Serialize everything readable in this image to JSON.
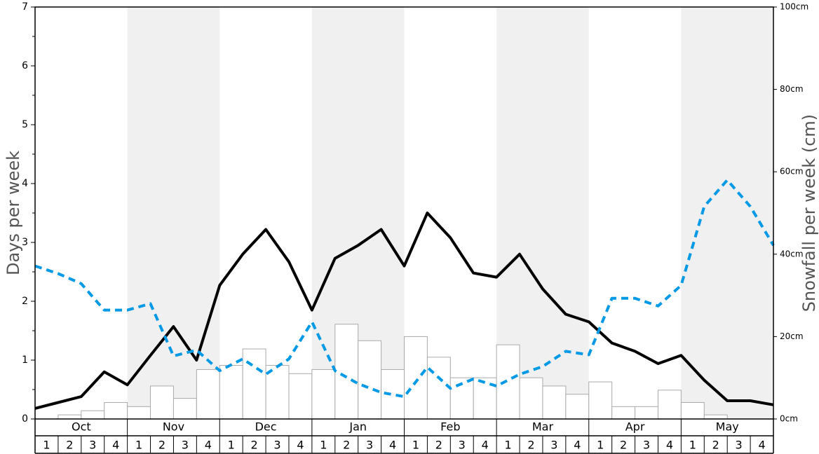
{
  "chart_data": {
    "type": "bar",
    "ylabel_left": "Days per week",
    "ylabel_right": "Snowfall per week (cm)",
    "ylim_left": [
      0,
      7
    ],
    "ylim_right": [
      0,
      100
    ],
    "left_ticks": [
      "0",
      "1",
      "2",
      "3",
      "4",
      "5",
      "6",
      "7"
    ],
    "right_ticks": [
      "0cm",
      "20cm",
      "40cm",
      "60cm",
      "80cm",
      "100cm"
    ],
    "months": [
      "Oct",
      "Nov",
      "Dec",
      "Jan",
      "Feb",
      "Mar",
      "Apr",
      "May"
    ],
    "weeks": [
      "1",
      "2",
      "3",
      "4"
    ],
    "colors": {
      "snowfall_bars": "#ffffff",
      "solid_line": "#000000",
      "dashed_line": "#0099e6",
      "band": "#f0f0f0"
    },
    "series": [
      {
        "kind": "bars",
        "axis": "right",
        "values": [
          0,
          1,
          2,
          4,
          3,
          8,
          5,
          12,
          13,
          17,
          13,
          11,
          12,
          23,
          19,
          12,
          20,
          15,
          10,
          10,
          18,
          10,
          8,
          6,
          9,
          3,
          3,
          7,
          4,
          1,
          0,
          0
        ]
      },
      {
        "kind": "line",
        "style": "solid",
        "axis": "left",
        "values": [
          0.18,
          0.28,
          0.38,
          0.8,
          0.58,
          1.08,
          1.57,
          1.0,
          2.27,
          2.8,
          3.22,
          2.67,
          1.85,
          2.73,
          2.95,
          3.22,
          2.6,
          3.5,
          3.08,
          2.48,
          2.41,
          2.8,
          2.21,
          1.78,
          1.65,
          1.29,
          1.15,
          0.94,
          1.08,
          0.66,
          0.31,
          0.31,
          0.24
        ]
      },
      {
        "kind": "line",
        "style": "dashed",
        "axis": "left",
        "values": [
          2.6,
          2.47,
          2.3,
          1.85,
          1.85,
          1.96,
          1.07,
          1.17,
          0.82,
          1.02,
          0.76,
          1.02,
          1.65,
          0.82,
          0.6,
          0.45,
          0.38,
          0.88,
          0.52,
          0.68,
          0.56,
          0.76,
          0.89,
          1.15,
          1.09,
          2.05,
          2.05,
          1.92,
          2.27,
          3.61,
          4.06,
          3.61,
          2.95
        ]
      }
    ]
  }
}
